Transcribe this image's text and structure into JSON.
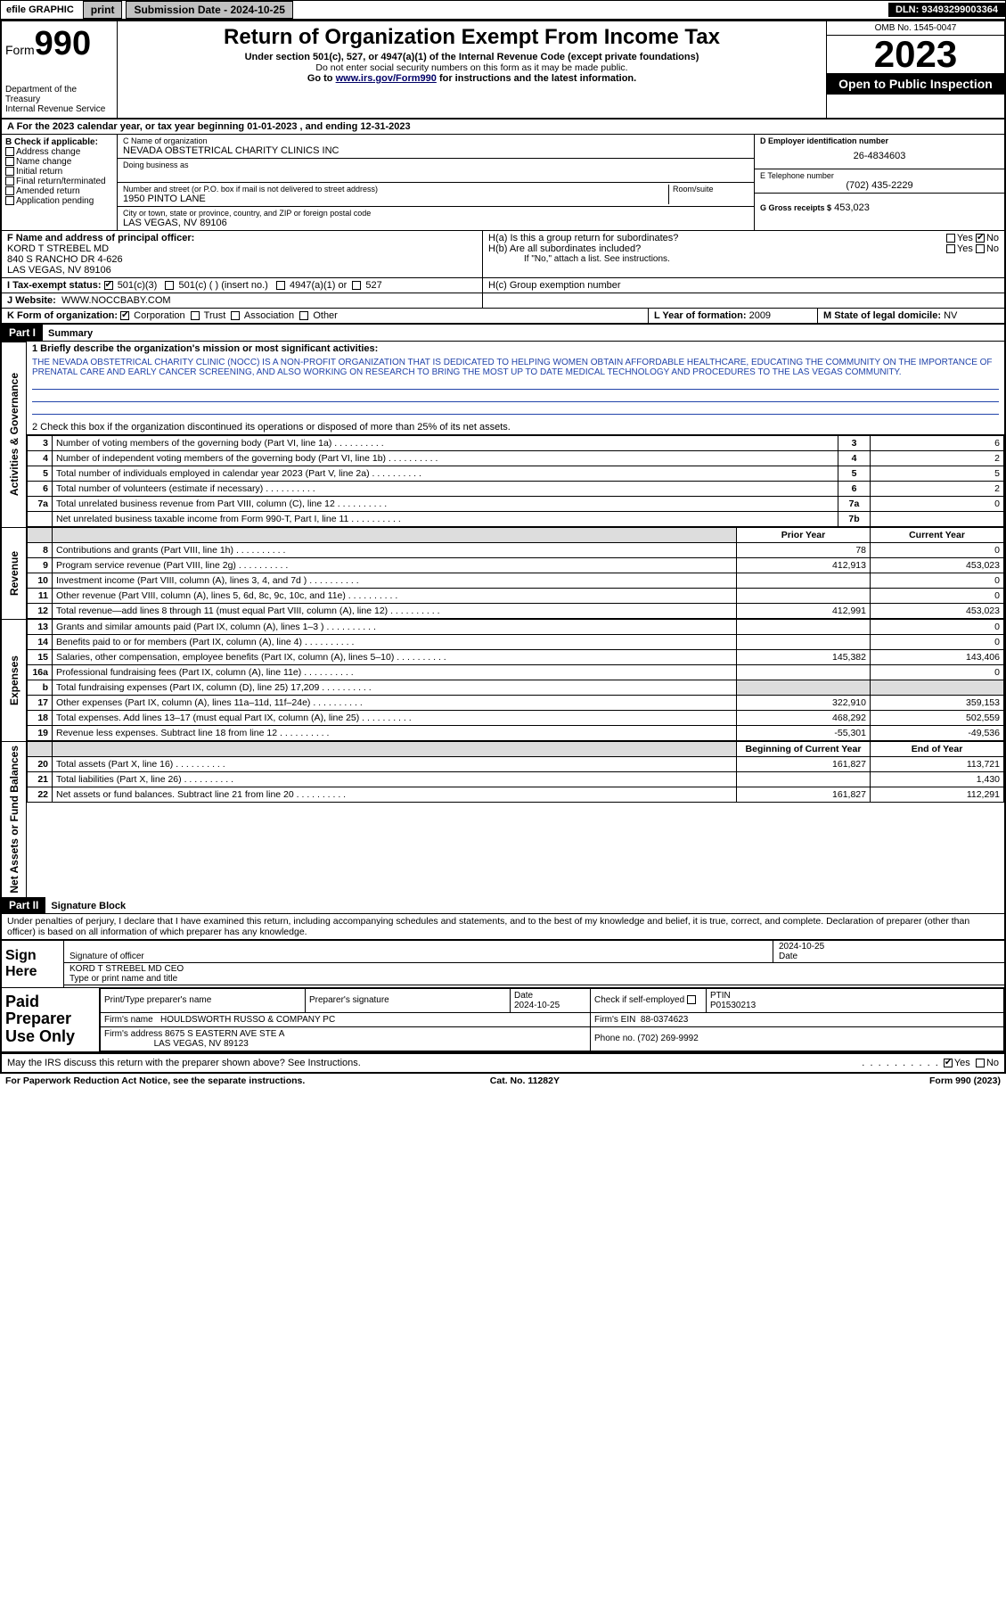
{
  "topbar": {
    "efile": "efile GRAPHIC",
    "print": "print",
    "sub_label": "Submission Date - 2024-10-25",
    "dln": "DLN: 93493299003364"
  },
  "header": {
    "form_word": "Form",
    "form_no": "990",
    "dept": "Department of the Treasury\nInternal Revenue Service",
    "title": "Return of Organization Exempt From Income Tax",
    "sub1": "Under section 501(c), 527, or 4947(a)(1) of the Internal Revenue Code (except private foundations)",
    "sub2": "Do not enter social security numbers on this form as it may be made public.",
    "sub3_pre": "Go to ",
    "sub3_link": "www.irs.gov/Form990",
    "sub3_post": " for instructions and the latest information.",
    "omb": "OMB No. 1545-0047",
    "year": "2023",
    "otpi": "Open to Public Inspection"
  },
  "line_a": "A For the 2023 calendar year, or tax year beginning 01-01-2023    , and ending 12-31-2023",
  "col_b": {
    "title": "B Check if applicable:",
    "items": [
      "Address change",
      "Name change",
      "Initial return",
      "Final return/terminated",
      "Amended return",
      "Application pending"
    ]
  },
  "col_c": {
    "name_lbl": "C Name of organization",
    "name": "NEVADA OBSTETRICAL CHARITY CLINICS INC",
    "dba_lbl": "Doing business as",
    "addr_lbl": "Number and street (or P.O. box if mail is not delivered to street address)",
    "room_lbl": "Room/suite",
    "addr": "1950 PINTO LANE",
    "city_lbl": "City or town, state or province, country, and ZIP or foreign postal code",
    "city": "LAS VEGAS, NV  89106"
  },
  "col_d": {
    "ein_lbl": "D Employer identification number",
    "ein": "26-4834603",
    "tel_lbl": "E Telephone number",
    "tel": "(702) 435-2229",
    "gross_lbl": "G Gross receipts $",
    "gross": "453,023"
  },
  "row_f": {
    "lbl": "F Name and address of principal officer:",
    "val": "KORD T STREBEL MD\n840 S RANCHO DR 4-626\nLAS VEGAS, NV  89106"
  },
  "row_h": {
    "ha": "H(a)  Is this a group return for subordinates?",
    "ha_yes": "Yes",
    "ha_no": "No",
    "hb": "H(b)  Are all subordinates included?",
    "hb_yes": "Yes",
    "hb_no": "No",
    "hb_note": "If \"No,\" attach a list. See instructions.",
    "hc": "H(c)  Group exemption number"
  },
  "row_i": {
    "lbl": "I     Tax-exempt status:",
    "opt1": "501(c)(3)",
    "opt2": "501(c) (  ) (insert no.)",
    "opt3": "4947(a)(1) or",
    "opt4": "527"
  },
  "row_j": {
    "lbl": "J    Website:",
    "val": "WWW.NOCCBABY.COM"
  },
  "row_k": {
    "lbl": "K Form of organization:",
    "opts": [
      "Corporation",
      "Trust",
      "Association",
      "Other"
    ],
    "l_lbl": "L Year of formation:",
    "l_val": "2009",
    "m_lbl": "M State of legal domicile:",
    "m_val": "NV"
  },
  "part1": {
    "hd": "Part I",
    "title": "Summary",
    "q1_lbl": "1   Briefly describe the organization's mission or most significant activities:",
    "q1_val": "THE NEVADA OBSTETRICAL CHARITY CLINIC (NOCC) IS A NON-PROFIT ORGANIZATION THAT IS DEDICATED TO HELPING WOMEN OBTAIN AFFORDABLE HEALTHCARE, EDUCATING THE COMMUNITY ON THE IMPORTANCE OF PRENATAL CARE AND EARLY CANCER SCREENING, AND ALSO WORKING ON RESEARCH TO BRING THE MOST UP TO DATE MEDICAL TECHNOLOGY AND PROCEDURES TO THE LAS VEGAS COMMUNITY.",
    "q2": "2   Check this box      if the organization discontinued its operations or disposed of more than 25% of its net assets.",
    "rows_ag": [
      {
        "n": "3",
        "t": "Number of voting members of the governing body (Part VI, line 1a)",
        "cn": "3",
        "v": "6"
      },
      {
        "n": "4",
        "t": "Number of independent voting members of the governing body (Part VI, line 1b)",
        "cn": "4",
        "v": "2"
      },
      {
        "n": "5",
        "t": "Total number of individuals employed in calendar year 2023 (Part V, line 2a)",
        "cn": "5",
        "v": "5"
      },
      {
        "n": "6",
        "t": "Total number of volunteers (estimate if necessary)",
        "cn": "6",
        "v": "2"
      },
      {
        "n": "7a",
        "t": "Total unrelated business revenue from Part VIII, column (C), line 12",
        "cn": "7a",
        "v": "0"
      },
      {
        "n": "",
        "t": "Net unrelated business taxable income from Form 990-T, Part I, line 11",
        "cn": "7b",
        "v": ""
      }
    ],
    "hdr_py": "Prior Year",
    "hdr_cy": "Current Year",
    "rows_rev": [
      {
        "n": "8",
        "t": "Contributions and grants (Part VIII, line 1h)",
        "py": "78",
        "cy": "0"
      },
      {
        "n": "9",
        "t": "Program service revenue (Part VIII, line 2g)",
        "py": "412,913",
        "cy": "453,023"
      },
      {
        "n": "10",
        "t": "Investment income (Part VIII, column (A), lines 3, 4, and 7d )",
        "py": "",
        "cy": "0"
      },
      {
        "n": "11",
        "t": "Other revenue (Part VIII, column (A), lines 5, 6d, 8c, 9c, 10c, and 11e)",
        "py": "",
        "cy": "0"
      },
      {
        "n": "12",
        "t": "Total revenue—add lines 8 through 11 (must equal Part VIII, column (A), line 12)",
        "py": "412,991",
        "cy": "453,023"
      }
    ],
    "rows_exp": [
      {
        "n": "13",
        "t": "Grants and similar amounts paid (Part IX, column (A), lines 1–3 )",
        "py": "",
        "cy": "0"
      },
      {
        "n": "14",
        "t": "Benefits paid to or for members (Part IX, column (A), line 4)",
        "py": "",
        "cy": "0"
      },
      {
        "n": "15",
        "t": "Salaries, other compensation, employee benefits (Part IX, column (A), lines 5–10)",
        "py": "145,382",
        "cy": "143,406"
      },
      {
        "n": "16a",
        "t": "Professional fundraising fees (Part IX, column (A), line 11e)",
        "py": "",
        "cy": "0"
      },
      {
        "n": "b",
        "t": "Total fundraising expenses (Part IX, column (D), line 25) 17,209",
        "py": "",
        "cy": ""
      },
      {
        "n": "17",
        "t": "Other expenses (Part IX, column (A), lines 11a–11d, 11f–24e)",
        "py": "322,910",
        "cy": "359,153"
      },
      {
        "n": "18",
        "t": "Total expenses. Add lines 13–17 (must equal Part IX, column (A), line 25)",
        "py": "468,292",
        "cy": "502,559"
      },
      {
        "n": "19",
        "t": "Revenue less expenses. Subtract line 18 from line 12",
        "py": "-55,301",
        "cy": "-49,536"
      }
    ],
    "hdr_bcy": "Beginning of Current Year",
    "hdr_ecy": "End of Year",
    "rows_na": [
      {
        "n": "20",
        "t": "Total assets (Part X, line 16)",
        "py": "161,827",
        "cy": "113,721"
      },
      {
        "n": "21",
        "t": "Total liabilities (Part X, line 26)",
        "py": "",
        "cy": "1,430"
      },
      {
        "n": "22",
        "t": "Net assets or fund balances. Subtract line 21 from line 20",
        "py": "161,827",
        "cy": "112,291"
      }
    ],
    "side_ag": "Activities & Governance",
    "side_rev": "Revenue",
    "side_exp": "Expenses",
    "side_na": "Net Assets or Fund Balances"
  },
  "part2": {
    "hd": "Part II",
    "title": "Signature Block",
    "decl": "Under penalties of perjury, I declare that I have examined this return, including accompanying schedules and statements, and to the best of my knowledge and belief, it is true, correct, and complete. Declaration of preparer (other than officer) is based on all information of which preparer has any knowledge."
  },
  "sign": {
    "l": "Sign Here",
    "sig_lbl": "Signature of officer",
    "date_lbl": "Date",
    "date": "2024-10-25",
    "name": "KORD T STREBEL MD CEO",
    "name_lbl": "Type or print name and title"
  },
  "paid": {
    "l": "Paid Preparer Use Only",
    "h1": "Print/Type preparer's name",
    "h2": "Preparer's signature",
    "h3": "Date",
    "date": "2024-10-25",
    "h4": "Check         if self-employed",
    "h5": "PTIN",
    "ptin": "P01530213",
    "firm_lbl": "Firm's name",
    "firm": "HOULDSWORTH RUSSO & COMPANY PC",
    "fein_lbl": "Firm's EIN",
    "fein": "88-0374623",
    "addr_lbl": "Firm's address",
    "addr1": "8675 S EASTERN AVE STE A",
    "addr2": "LAS VEGAS, NV  89123",
    "phone_lbl": "Phone no.",
    "phone": "(702) 269-9992"
  },
  "discuss": {
    "q": "May the IRS discuss this return with the preparer shown above? See Instructions.",
    "yes": "Yes",
    "no": "No"
  },
  "footer": {
    "l": "For Paperwork Reduction Act Notice, see the separate instructions.",
    "m": "Cat. No. 11282Y",
    "r": "Form 990 (2023)"
  },
  "colors": {
    "link": "#003366",
    "mission_line": "#2244aa"
  }
}
